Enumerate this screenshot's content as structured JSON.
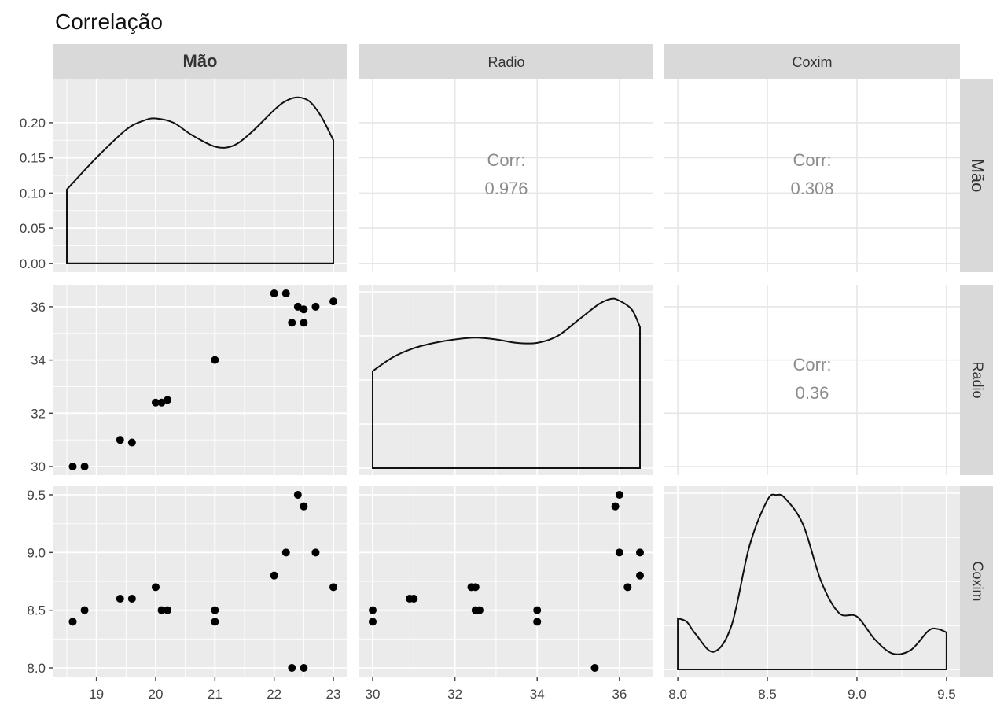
{
  "title": "Correlação",
  "variables": [
    "Mão",
    "Radio",
    "Coxim"
  ],
  "colors": {
    "panel_bg": "#ebebeb",
    "grid": "#ffffff",
    "strip_bg": "#d9d9d9",
    "point": "#000000",
    "corr_text": "#8c8c8c"
  },
  "chart_data": [
    {
      "type": "line",
      "panel": "Mão-Mão",
      "row": "Mão",
      "col": "Mão",
      "xlim": [
        18.5,
        23.0
      ],
      "ylim": [
        0,
        0.25
      ],
      "yticks": [
        0.0,
        0.05,
        0.1,
        0.15,
        0.2
      ],
      "ytick_labels": [
        "0.00",
        "0.05",
        "0.10",
        "0.15",
        "0.20"
      ],
      "series": [
        {
          "x": [
            18.5,
            19.0,
            19.5,
            19.8,
            20.0,
            20.3,
            20.6,
            21.0,
            21.3,
            21.6,
            22.0,
            22.2,
            22.4,
            22.6,
            22.8,
            23.0
          ],
          "y": [
            0.105,
            0.15,
            0.19,
            0.203,
            0.206,
            0.2,
            0.183,
            0.166,
            0.167,
            0.185,
            0.218,
            0.231,
            0.236,
            0.23,
            0.208,
            0.175
          ]
        }
      ]
    },
    {
      "type": "text",
      "panel": "Mão-Radio",
      "row": "Mão",
      "col": "Radio",
      "label": "Corr:",
      "value": "0.976"
    },
    {
      "type": "text",
      "panel": "Mão-Coxim",
      "row": "Mão",
      "col": "Coxim",
      "label": "Corr:",
      "value": "0.308"
    },
    {
      "type": "scatter",
      "panel": "Radio-Mão",
      "row": "Radio",
      "col": "Mão",
      "xlim": [
        18.5,
        23.0
      ],
      "ylim": [
        30,
        36.5
      ],
      "yticks": [
        30,
        32,
        34,
        36
      ],
      "ytick_labels": [
        "30",
        "32",
        "34",
        "36"
      ],
      "points": [
        [
          18.6,
          30.0
        ],
        [
          18.8,
          30.0
        ],
        [
          19.4,
          31.0
        ],
        [
          19.6,
          30.9
        ],
        [
          20.0,
          32.4
        ],
        [
          20.1,
          32.4
        ],
        [
          20.2,
          32.5
        ],
        [
          21.0,
          34.0
        ],
        [
          22.0,
          36.5
        ],
        [
          22.2,
          36.5
        ],
        [
          22.3,
          35.4
        ],
        [
          22.4,
          36.0
        ],
        [
          22.5,
          35.9
        ],
        [
          22.5,
          35.4
        ],
        [
          22.7,
          36.0
        ],
        [
          23.0,
          36.2
        ]
      ]
    },
    {
      "type": "line",
      "panel": "Radio-Radio",
      "row": "Radio",
      "col": "Radio",
      "xlim": [
        30,
        36.5
      ],
      "series": [
        {
          "x": [
            30.0,
            30.5,
            31.0,
            31.5,
            32.0,
            32.5,
            33.0,
            33.5,
            34.0,
            34.5,
            35.0,
            35.5,
            35.8,
            36.0,
            36.3,
            36.5
          ],
          "y": [
            0.55,
            0.63,
            0.68,
            0.71,
            0.73,
            0.74,
            0.73,
            0.71,
            0.71,
            0.75,
            0.84,
            0.93,
            0.96,
            0.95,
            0.9,
            0.8
          ]
        }
      ]
    },
    {
      "type": "text",
      "panel": "Radio-Coxim",
      "row": "Radio",
      "col": "Coxim",
      "label": "Corr:",
      "value": "0.36"
    },
    {
      "type": "scatter",
      "panel": "Coxim-Mão",
      "row": "Coxim",
      "col": "Mão",
      "xlim": [
        18.5,
        23.0
      ],
      "ylim": [
        8.0,
        9.5
      ],
      "xticks": [
        19,
        20,
        21,
        22,
        23
      ],
      "xtick_labels": [
        "19",
        "20",
        "21",
        "22",
        "23"
      ],
      "yticks": [
        8.0,
        8.5,
        9.0,
        9.5
      ],
      "ytick_labels": [
        "8.0",
        "8.5",
        "9.0",
        "9.5"
      ],
      "points": [
        [
          18.6,
          8.4
        ],
        [
          18.8,
          8.5
        ],
        [
          19.4,
          8.6
        ],
        [
          19.6,
          8.6
        ],
        [
          20.0,
          8.7
        ],
        [
          20.1,
          8.5
        ],
        [
          20.2,
          8.5
        ],
        [
          21.0,
          8.5
        ],
        [
          21.0,
          8.4
        ],
        [
          22.0,
          8.8
        ],
        [
          22.2,
          9.0
        ],
        [
          22.3,
          8.0
        ],
        [
          22.4,
          9.5
        ],
        [
          22.5,
          9.4
        ],
        [
          22.5,
          8.0
        ],
        [
          22.7,
          9.0
        ],
        [
          23.0,
          8.7
        ]
      ]
    },
    {
      "type": "scatter",
      "panel": "Coxim-Radio",
      "row": "Coxim",
      "col": "Radio",
      "xlim": [
        30,
        36.5
      ],
      "xticks": [
        30,
        32,
        34,
        36
      ],
      "xtick_labels": [
        "30",
        "32",
        "34",
        "36"
      ],
      "points": [
        [
          30.0,
          8.5
        ],
        [
          30.0,
          8.4
        ],
        [
          30.9,
          8.6
        ],
        [
          31.0,
          8.6
        ],
        [
          32.4,
          8.7
        ],
        [
          32.5,
          8.7
        ],
        [
          32.5,
          8.5
        ],
        [
          32.6,
          8.5
        ],
        [
          34.0,
          8.5
        ],
        [
          34.0,
          8.4
        ],
        [
          35.4,
          8.0
        ],
        [
          35.9,
          9.4
        ],
        [
          36.0,
          9.5
        ],
        [
          36.0,
          9.0
        ],
        [
          36.2,
          8.7
        ],
        [
          36.5,
          9.0
        ],
        [
          36.5,
          8.8
        ]
      ]
    },
    {
      "type": "line",
      "panel": "Coxim-Coxim",
      "row": "Coxim",
      "col": "Coxim",
      "xlim": [
        8.0,
        9.5
      ],
      "xticks": [
        8.0,
        8.5,
        9.0,
        9.5
      ],
      "xtick_labels": [
        "8.0",
        "8.5",
        "9.0",
        "9.5"
      ],
      "series": [
        {
          "x": [
            8.0,
            8.05,
            8.1,
            8.2,
            8.3,
            8.4,
            8.5,
            8.55,
            8.6,
            8.7,
            8.8,
            8.9,
            9.0,
            9.1,
            9.2,
            9.3,
            9.4,
            9.45,
            9.5
          ],
          "y": [
            0.29,
            0.27,
            0.2,
            0.1,
            0.25,
            0.7,
            0.96,
            0.99,
            0.97,
            0.82,
            0.5,
            0.32,
            0.3,
            0.17,
            0.09,
            0.11,
            0.22,
            0.23,
            0.21
          ]
        }
      ]
    }
  ]
}
